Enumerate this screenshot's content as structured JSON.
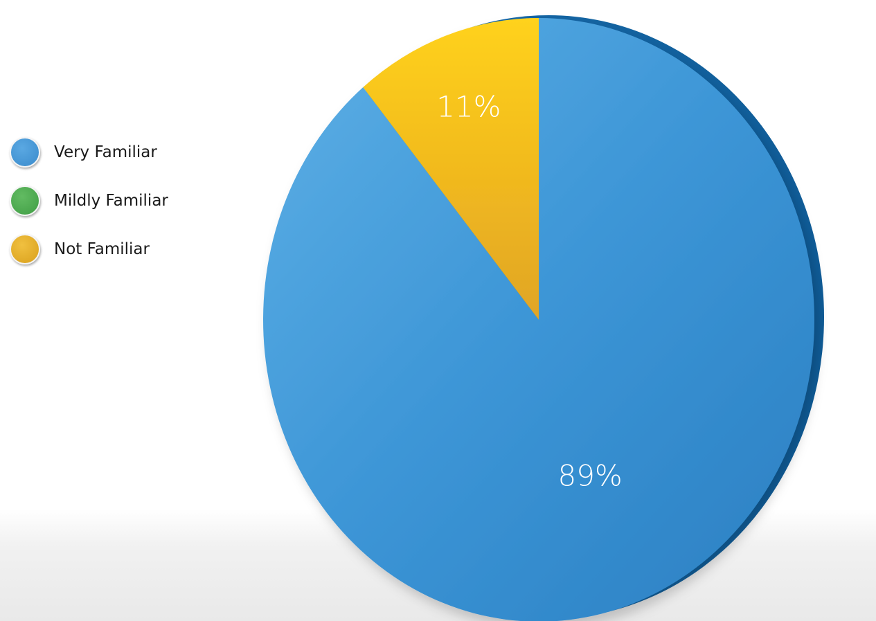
{
  "chart_data": {
    "type": "pie",
    "title": "",
    "legend_position": "left",
    "categories": [
      "Very Familiar",
      "Mildly Familiar",
      "Not Familiar"
    ],
    "values": [
      89,
      0,
      11
    ],
    "data_labels": [
      "89%",
      "",
      "11%"
    ],
    "colors": [
      "#3f93d3",
      "#4aa84e",
      "#e6ae22"
    ]
  }
}
